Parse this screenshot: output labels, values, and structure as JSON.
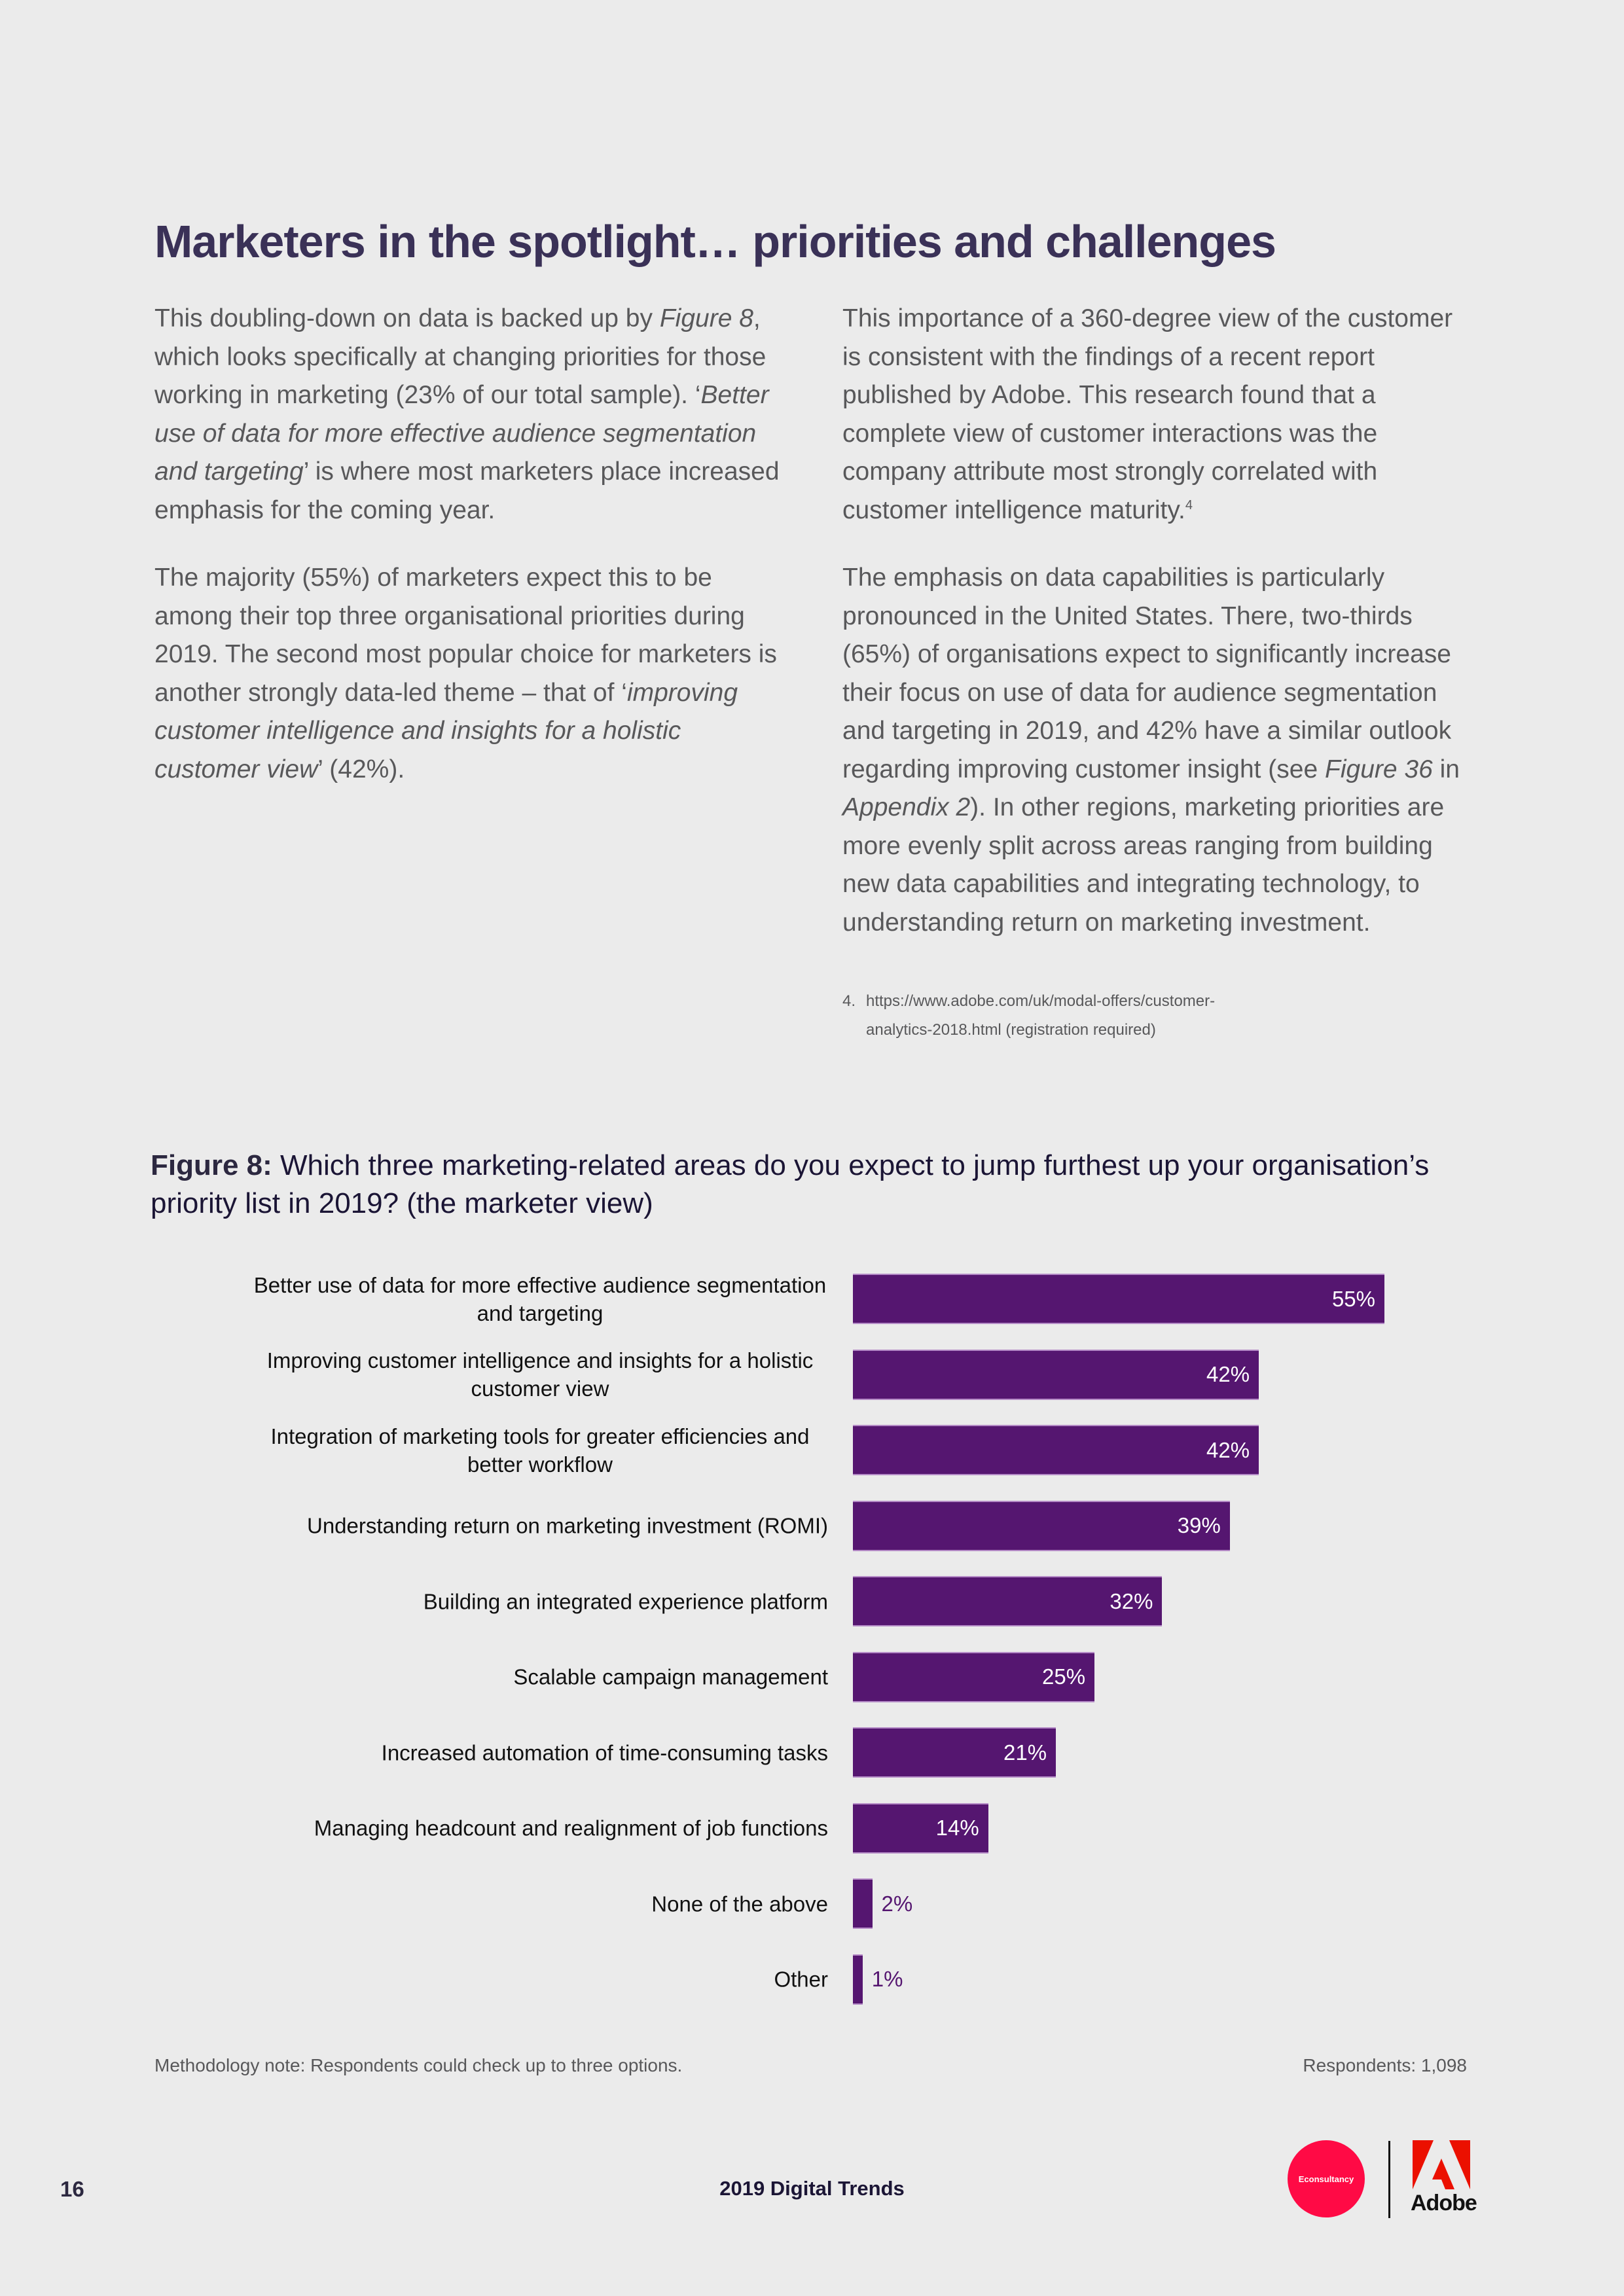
{
  "page": {
    "title": "Marketers in the spotlight… priorities and challenges",
    "left_column": [
      {
        "segments": [
          {
            "text": "This doubling-down on data is backed up by ",
            "italic": false
          },
          {
            "text": "Figure 8",
            "italic": true
          },
          {
            "text": ", which looks specifically at changing priorities for those working in marketing (23% of our total sample). ‘",
            "italic": false
          },
          {
            "text": "Better use of data for more effective audience segmentation and targeting",
            "italic": true
          },
          {
            "text": "’ is where most marketers place increased emphasis for the coming year.",
            "italic": false
          }
        ]
      },
      {
        "segments": [
          {
            "text": "The majority (55%) of marketers expect this to be among their top three organisational priorities during 2019. The second most popular choice for marketers is another strongly data-led theme – that of ‘",
            "italic": false
          },
          {
            "text": "improving customer intelligence and insights for a holistic customer view",
            "italic": true
          },
          {
            "text": "’ (42%).",
            "italic": false
          }
        ]
      }
    ],
    "right_column": [
      {
        "segments": [
          {
            "text": "This importance of a 360-degree view of the customer is consistent with the findings of a recent report published by Adobe. This research found that a complete view of customer interactions was the company attribute most strongly correlated with customer intelligence maturity.",
            "italic": false
          }
        ],
        "footnote_ref": "4"
      },
      {
        "segments": [
          {
            "text": "The emphasis on data capabilities is particularly pronounced in the United States. There, two-thirds (65%) of organisations expect to significantly increase their focus on use of data for audience segmentation and targeting in 2019, and 42% have a similar outlook regarding improving customer insight (see ",
            "italic": false
          },
          {
            "text": "Figure 36",
            "italic": true
          },
          {
            "text": " in ",
            "italic": false
          },
          {
            "text": "Appendix 2",
            "italic": true
          },
          {
            "text": "). In other regions, marketing priorities are more evenly split across areas ranging from building new data capabilities and integrating technology, to understanding return on marketing investment.",
            "italic": false
          }
        ]
      }
    ],
    "footnote": {
      "number": "4.",
      "line1": "https://www.adobe.com/uk/modal-offers/customer-",
      "line2": "analytics-2018.html (registration required)"
    }
  },
  "figure": {
    "label": "Figure 8:",
    "question": " Which three marketing-related areas do you expect to jump furthest up your organisation’s priority list in 2019? (the marketer view)",
    "methodology_note": "Methodology note: Respondents could check up to three options.",
    "respondents": "Respondents: 1,098"
  },
  "chart_data": {
    "type": "bar",
    "orientation": "horizontal",
    "title": "Figure 8: Which three marketing-related areas do you expect to jump furthest up your organisation’s priority list in 2019? (the marketer view)",
    "xlabel": "",
    "ylabel": "",
    "xlim": [
      0,
      55
    ],
    "grid": false,
    "legend": null,
    "unit": "%",
    "bar_color": "#551670",
    "categories": [
      "Better use of data for more effective audience segmentation and targeting",
      "Improving customer intelligence and insights for a holistic customer view",
      "Integration of marketing tools for greater efficiencies and better workflow",
      "Understanding return on marketing investment (ROMI)",
      "Building an integrated experience platform",
      "Scalable campaign management",
      "Increased automation of time-consuming tasks",
      "Managing headcount and realignment of job functions",
      "None of the above",
      "Other"
    ],
    "values": [
      55,
      42,
      42,
      39,
      32,
      25,
      21,
      14,
      2,
      1
    ],
    "value_labels": [
      "55%",
      "42%",
      "42%",
      "39%",
      "32%",
      "25%",
      "21%",
      "14%",
      "2%",
      "1%"
    ],
    "label_lines": [
      [
        "Better use of data for more effective audience segmentation",
        "and targeting"
      ],
      [
        "Improving customer intelligence and insights for a holistic",
        "customer view"
      ],
      [
        "Integration of marketing tools for greater efficiencies and",
        "better workflow"
      ],
      [
        "Understanding return on marketing investment (ROMI)"
      ],
      [
        "Building an integrated experience platform"
      ],
      [
        "Scalable campaign management"
      ],
      [
        "Increased automation of time-consuming tasks"
      ],
      [
        "Managing headcount and realignment of job functions"
      ],
      [
        "None of the above"
      ],
      [
        "Other"
      ]
    ]
  },
  "footer": {
    "page_number": "16",
    "publication": "2019 Digital Trends",
    "logo_econsultancy": "Econsultancy",
    "logo_adobe": "Adobe"
  },
  "colors": {
    "background": "#ebebeb",
    "title": "#3a3157",
    "body_text": "#58585a",
    "bar": "#551670",
    "econsultancy_red": "#ff0a45",
    "adobe_red": "#eb1000"
  }
}
